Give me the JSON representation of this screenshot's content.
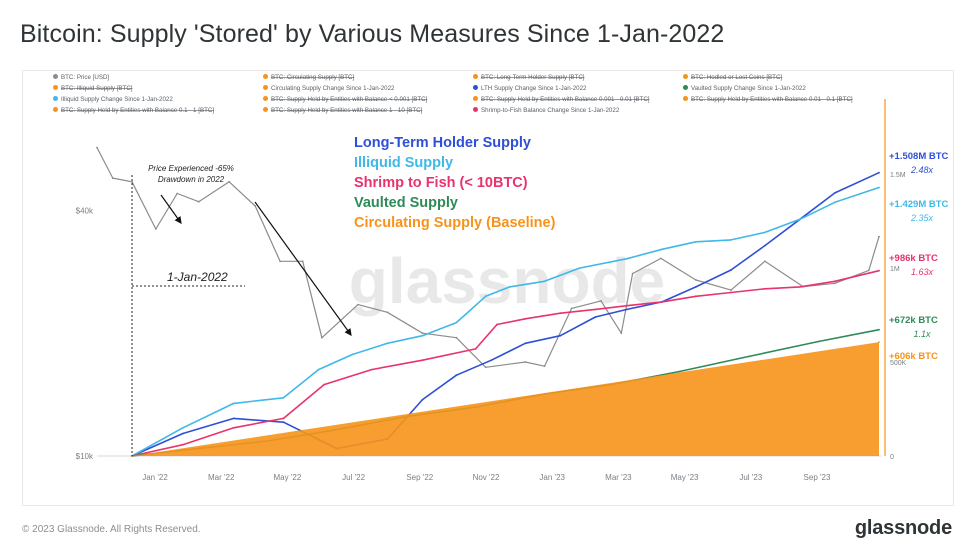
{
  "page": {
    "title": "Bitcoin: Supply 'Stored' by Various Measures Since 1-Jan-2022",
    "copyright": "© 2023 Glassnode. All Rights Reserved.",
    "brand": "glassnode",
    "watermark": "glassnode"
  },
  "legend": {
    "rows": [
      [
        {
          "label": "BTC: Price [USD]",
          "color": "#8c8c8c",
          "struck": false
        },
        {
          "label": "BTC: Circulating Supply [BTC]",
          "color": "#f7931a",
          "struck": true
        },
        {
          "label": "BTC: Long-Term Holder Supply [BTC]",
          "color": "#f7931a",
          "struck": true
        },
        {
          "label": "BTC: Hodled or Lost Coins [BTC]",
          "color": "#f7931a",
          "struck": true
        }
      ],
      [
        {
          "label": "BTC: Illiquid Supply [BTC]",
          "color": "#f7931a",
          "struck": true
        },
        {
          "label": "Circulating Supply Change Since 1-Jan-2022",
          "color": "#f7931a",
          "struck": false
        },
        {
          "label": "LTH Supply Change Since 1-Jan-2022",
          "color": "#2f4fd6",
          "struck": false
        },
        {
          "label": "Vaulted Supply Change Since 1-Jan-2022",
          "color": "#2e8b57",
          "struck": false
        }
      ],
      [
        {
          "label": "Illiquid Supply Change Since 1-Jan-2022",
          "color": "#40b8e8",
          "struck": false
        },
        {
          "label": "BTC: Supply Held by Entities with Balance < 0.001 [BTC]",
          "color": "#f7931a",
          "struck": true
        },
        {
          "label": "BTC: Supply Held by Entities with Balance 0.001 - 0.01 [BTC]",
          "color": "#f7931a",
          "struck": true
        },
        {
          "label": "BTC: Supply Held by Entities with Balance 0.01 - 0.1 [BTC]",
          "color": "#f7931a",
          "struck": true
        }
      ],
      [
        {
          "label": "BTC: Supply Held by Entities with Balance 0.1 - 1 [BTC]",
          "color": "#f7931a",
          "struck": true
        },
        {
          "label": "BTC: Supply Held by Entities with Balance 1 - 10 [BTC]",
          "color": "#f7931a",
          "struck": true
        },
        {
          "label": "Shrimp-to-Fish Balance Change Since 1-Jan-2022",
          "color": "#e8336d",
          "struck": false
        }
      ]
    ]
  },
  "annotations": {
    "series_key": [
      {
        "text": "Long-Term Holder Supply",
        "color": "#2f4fd6"
      },
      {
        "text": "Illiquid Supply",
        "color": "#40b8e8"
      },
      {
        "text": "Shrimp to Fish (< 10BTC)",
        "color": "#e8336d"
      },
      {
        "text": "Vaulted Supply",
        "color": "#2e8b57"
      },
      {
        "text": "Circulating Supply (Baseline)",
        "color": "#f7931a"
      }
    ],
    "drawdown_note": [
      "Price Experienced -65%",
      "Drawdown in 2022"
    ],
    "start_date_label": "1-Jan-2022",
    "end_labels": [
      {
        "value": "+1.508M BTC",
        "multiple": "2.48x",
        "color": "#2f4fd6"
      },
      {
        "value": "+1.429M BTC",
        "multiple": "2.35x",
        "color": "#40b8e8"
      },
      {
        "value": "+986k BTC",
        "multiple": "1.63x",
        "color": "#e8336d"
      },
      {
        "value": "+672k BTC",
        "multiple": "1.1x",
        "color": "#2e8b57"
      },
      {
        "value": "+606k BTC",
        "multiple": "",
        "color": "#f7931a"
      }
    ]
  },
  "chart_data": {
    "type": "line",
    "x_ticks": [
      "Jan '22",
      "Mar '22",
      "May '22",
      "Jul '22",
      "Sep '22",
      "Nov '22",
      "Jan '23",
      "Mar '23",
      "May '23",
      "Jul '23",
      "Sep '23"
    ],
    "left_axis": {
      "label": "",
      "scale": "log",
      "ticks": [
        "$40k",
        "$10k"
      ],
      "range": [
        10000,
        75000
      ]
    },
    "right_axis": {
      "label": "",
      "ticks": [
        "1.5M",
        "1M",
        "500K",
        "0"
      ],
      "range": [
        0,
        1900000
      ]
    },
    "grid": false,
    "series": [
      {
        "name": "BTC: Price [USD]",
        "axis": "left",
        "color": "#8c8c8c",
        "x": [
          "2021-12-01",
          "2021-12-15",
          "2022-01-01",
          "2022-01-22",
          "2022-02-10",
          "2022-03-01",
          "2022-03-28",
          "2022-04-20",
          "2022-05-12",
          "2022-06-01",
          "2022-06-18",
          "2022-07-20",
          "2022-08-15",
          "2022-09-15",
          "2022-10-15",
          "2022-11-10",
          "2022-12-15",
          "2023-01-01",
          "2023-01-25",
          "2023-02-20",
          "2023-03-10",
          "2023-03-20",
          "2023-04-14",
          "2023-05-15",
          "2023-06-15",
          "2023-07-15",
          "2023-08-18",
          "2023-09-15",
          "2023-10-15",
          "2023-10-24"
        ],
        "values": [
          57000,
          48000,
          47000,
          36000,
          44000,
          42000,
          47000,
          41000,
          30000,
          30000,
          19500,
          23500,
          22500,
          20000,
          19500,
          16500,
          17000,
          16600,
          23000,
          24000,
          20000,
          28000,
          30500,
          27000,
          25500,
          30000,
          26000,
          26500,
          28500,
          34500
        ]
      },
      {
        "name": "LTH Supply Change Since 1-Jan-2022",
        "axis": "right",
        "color": "#2f4fd6",
        "x": [
          "2022-01-01",
          "2022-02-15",
          "2022-04-01",
          "2022-05-15",
          "2022-07-01",
          "2022-08-15",
          "2022-09-15",
          "2022-10-15",
          "2022-11-15",
          "2022-12-15",
          "2023-01-15",
          "2023-02-15",
          "2023-03-15",
          "2023-04-15",
          "2023-05-15",
          "2023-06-15",
          "2023-07-15",
          "2023-08-15",
          "2023-09-15",
          "2023-10-24"
        ],
        "values": [
          0,
          120000,
          200000,
          180000,
          40000,
          90000,
          300000,
          430000,
          510000,
          600000,
          640000,
          740000,
          780000,
          820000,
          900000,
          990000,
          1120000,
          1260000,
          1400000,
          1508000
        ]
      },
      {
        "name": "Illiquid Supply Change Since 1-Jan-2022",
        "axis": "right",
        "color": "#40b8e8",
        "x": [
          "2022-01-01",
          "2022-02-15",
          "2022-04-01",
          "2022-05-15",
          "2022-06-15",
          "2022-07-15",
          "2022-08-15",
          "2022-09-15",
          "2022-10-15",
          "2022-11-10",
          "2022-12-01",
          "2023-01-01",
          "2023-02-01",
          "2023-03-15",
          "2023-04-15",
          "2023-05-15",
          "2023-06-15",
          "2023-07-15",
          "2023-08-15",
          "2023-09-15",
          "2023-10-24"
        ],
        "values": [
          0,
          150000,
          280000,
          310000,
          460000,
          540000,
          600000,
          640000,
          710000,
          850000,
          900000,
          930000,
          1000000,
          1050000,
          1100000,
          1140000,
          1150000,
          1190000,
          1260000,
          1350000,
          1429000
        ]
      },
      {
        "name": "Shrimp-to-Fish Balance Change Since 1-Jan-2022",
        "axis": "right",
        "color": "#e8336d",
        "x": [
          "2022-01-01",
          "2022-02-15",
          "2022-04-01",
          "2022-05-15",
          "2022-06-20",
          "2022-08-01",
          "2022-09-15",
          "2022-11-01",
          "2022-11-20",
          "2022-12-15",
          "2023-01-15",
          "2023-02-15",
          "2023-03-15",
          "2023-04-15",
          "2023-05-15",
          "2023-06-15",
          "2023-07-15",
          "2023-08-15",
          "2023-09-15",
          "2023-10-24"
        ],
        "values": [
          0,
          60000,
          150000,
          200000,
          380000,
          460000,
          510000,
          570000,
          700000,
          730000,
          760000,
          780000,
          800000,
          820000,
          850000,
          870000,
          890000,
          900000,
          930000,
          986000
        ]
      },
      {
        "name": "Vaulted Supply Change Since 1-Jan-2022",
        "axis": "right",
        "color": "#2e8b57",
        "x": [
          "2022-01-01",
          "2022-03-01",
          "2022-05-01",
          "2022-07-01",
          "2022-09-01",
          "2022-11-01",
          "2023-01-01",
          "2023-03-01",
          "2023-05-01",
          "2023-07-01",
          "2023-09-01",
          "2023-10-24"
        ],
        "values": [
          0,
          40000,
          80000,
          140000,
          210000,
          260000,
          330000,
          380000,
          450000,
          530000,
          610000,
          672000
        ]
      },
      {
        "name": "Circulating Supply Change Since 1-Jan-2022",
        "axis": "right",
        "color": "#f7931a",
        "fill": true,
        "x": [
          "2022-01-01",
          "2023-10-24"
        ],
        "values": [
          0,
          606000
        ]
      }
    ]
  }
}
